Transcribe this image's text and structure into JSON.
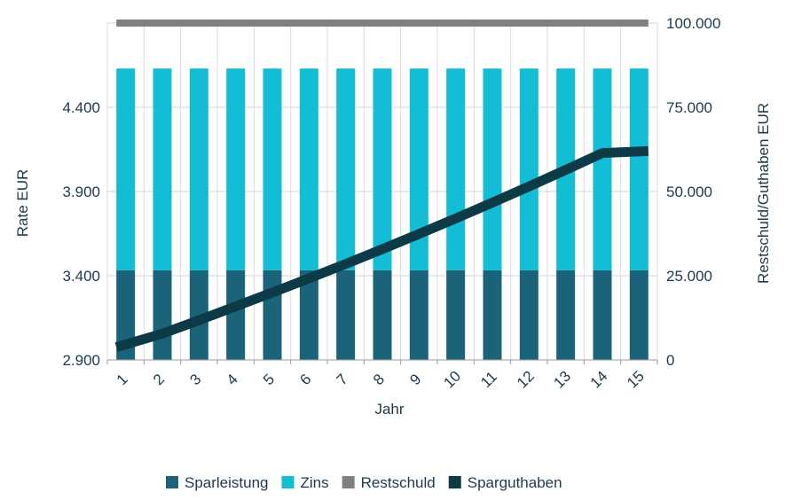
{
  "chart_data": {
    "type": "bar",
    "categories": [
      "1",
      "2",
      "3",
      "4",
      "5",
      "6",
      "7",
      "8",
      "9",
      "10",
      "11",
      "12",
      "13",
      "14",
      "15"
    ],
    "xlabel": "Jahr",
    "ylabel_left": "Rate EUR",
    "ylabel_right": "Restschuld/Guthaben EUR",
    "ylim_left": [
      2900,
      4900
    ],
    "yticks_left": [
      2900,
      3400,
      3900,
      4400
    ],
    "ytick_labels_left": [
      "2.900",
      "3.400",
      "3.900",
      "4.400"
    ],
    "ylim_right": [
      0,
      100000
    ],
    "yticks_right": [
      0,
      25000,
      50000,
      75000,
      100000
    ],
    "ytick_labels_right": [
      "0",
      "25.000",
      "50.000",
      "75.000",
      "100.000"
    ],
    "grid": true,
    "legend_position": "bottom",
    "series": [
      {
        "name": "Sparleistung",
        "type": "bar",
        "axis": "left",
        "color": "#1b6378",
        "values": [
          3432,
          3432,
          3432,
          3432,
          3432,
          3432,
          3432,
          3432,
          3432,
          3432,
          3432,
          3432,
          3432,
          3432,
          3432
        ]
      },
      {
        "name": "Zins",
        "type": "bar",
        "axis": "left",
        "color": "#14bdd6",
        "values": [
          1198,
          1198,
          1198,
          1198,
          1198,
          1198,
          1198,
          1198,
          1198,
          1198,
          1198,
          1198,
          1198,
          1198,
          1198
        ]
      },
      {
        "name": "Restschuld",
        "type": "line",
        "axis": "right",
        "color": "#808080",
        "values": [
          100000,
          100000,
          100000,
          100000,
          100000,
          100000,
          100000,
          100000,
          100000,
          100000,
          100000,
          100000,
          100000,
          100000,
          100000
        ]
      },
      {
        "name": "Sparguthaben",
        "type": "line",
        "axis": "right",
        "color": "#0d3a47",
        "values": [
          3800,
          7800,
          11800,
          15900,
          20000,
          24200,
          28500,
          32900,
          37400,
          42000,
          46700,
          51500,
          56400,
          61400,
          62000
        ]
      }
    ]
  }
}
